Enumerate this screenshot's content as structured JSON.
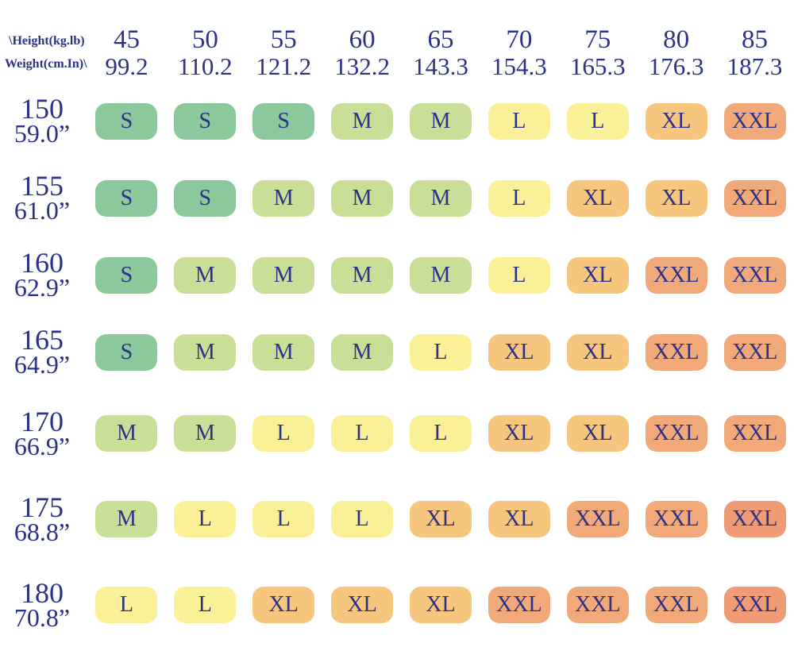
{
  "colors": {
    "text": "#2b3287",
    "background": "#ffffff",
    "sizes": {
      "S": "#8bc99c",
      "M": "#c9de97",
      "L": "#faf098",
      "XL": "#f6c67f",
      "XXL": "#f1a97a"
    },
    "xxl_dark": "#ee9b76"
  },
  "chart_data": {
    "type": "table",
    "title": "Clothing size chart by height (cm/in) and weight (kg/lb)",
    "corner": {
      "line1": "\\Height(kg.lb)",
      "line2": "Weight(cm.In)\\"
    },
    "columns": [
      {
        "kg": "45",
        "lb": "99.2"
      },
      {
        "kg": "50",
        "lb": "110.2"
      },
      {
        "kg": "55",
        "lb": "121.2"
      },
      {
        "kg": "60",
        "lb": "132.2"
      },
      {
        "kg": "65",
        "lb": "143.3"
      },
      {
        "kg": "70",
        "lb": "154.3"
      },
      {
        "kg": "75",
        "lb": "165.3"
      },
      {
        "kg": "80",
        "lb": "176.3"
      },
      {
        "kg": "85",
        "lb": "187.3"
      }
    ],
    "rows": [
      {
        "cm": "150",
        "in": "59.0”",
        "cells": [
          "S",
          "S",
          "S",
          "M",
          "M",
          "L",
          "L",
          "XL",
          "XXL"
        ]
      },
      {
        "cm": "155",
        "in": "61.0”",
        "cells": [
          "S",
          "S",
          "M",
          "M",
          "M",
          "L",
          "XL",
          "XL",
          "XXL"
        ]
      },
      {
        "cm": "160",
        "in": "62.9”",
        "cells": [
          "S",
          "M",
          "M",
          "M",
          "M",
          "L",
          "XL",
          "XXL",
          "XXL"
        ]
      },
      {
        "cm": "165",
        "in": "64.9”",
        "cells": [
          "S",
          "M",
          "M",
          "M",
          "L",
          "XL",
          "XL",
          "XXL",
          "XXL"
        ]
      },
      {
        "cm": "170",
        "in": "66.9”",
        "cells": [
          "M",
          "M",
          "L",
          "L",
          "L",
          "XL",
          "XL",
          "XXL",
          "XXL"
        ]
      },
      {
        "cm": "175",
        "in": "68.8”",
        "cells": [
          "M",
          "L",
          "L",
          "L",
          "XL",
          "XL",
          "XXL",
          "XXL",
          "XXL"
        ]
      },
      {
        "cm": "180",
        "in": "70.8”",
        "cells": [
          "L",
          "L",
          "XL",
          "XL",
          "XL",
          "XXL",
          "XXL",
          "XXL",
          "XXL"
        ]
      }
    ],
    "cell_color_overrides": [
      {
        "row": 5,
        "col": 8,
        "color": "#ee9b76"
      },
      {
        "row": 6,
        "col": 8,
        "color": "#ee9b76"
      }
    ],
    "weights_kg": [
      45,
      50,
      55,
      60,
      65,
      70,
      75,
      80,
      85
    ],
    "weights_lb": [
      99.2,
      110.2,
      121.2,
      132.2,
      143.3,
      154.3,
      165.3,
      176.3,
      187.3
    ],
    "heights_cm": [
      150,
      155,
      160,
      165,
      170,
      175,
      180
    ],
    "heights_in": [
      59.0,
      61.0,
      62.9,
      64.9,
      66.9,
      68.8,
      70.8
    ],
    "size_scale": [
      "S",
      "M",
      "L",
      "XL",
      "XXL"
    ]
  }
}
